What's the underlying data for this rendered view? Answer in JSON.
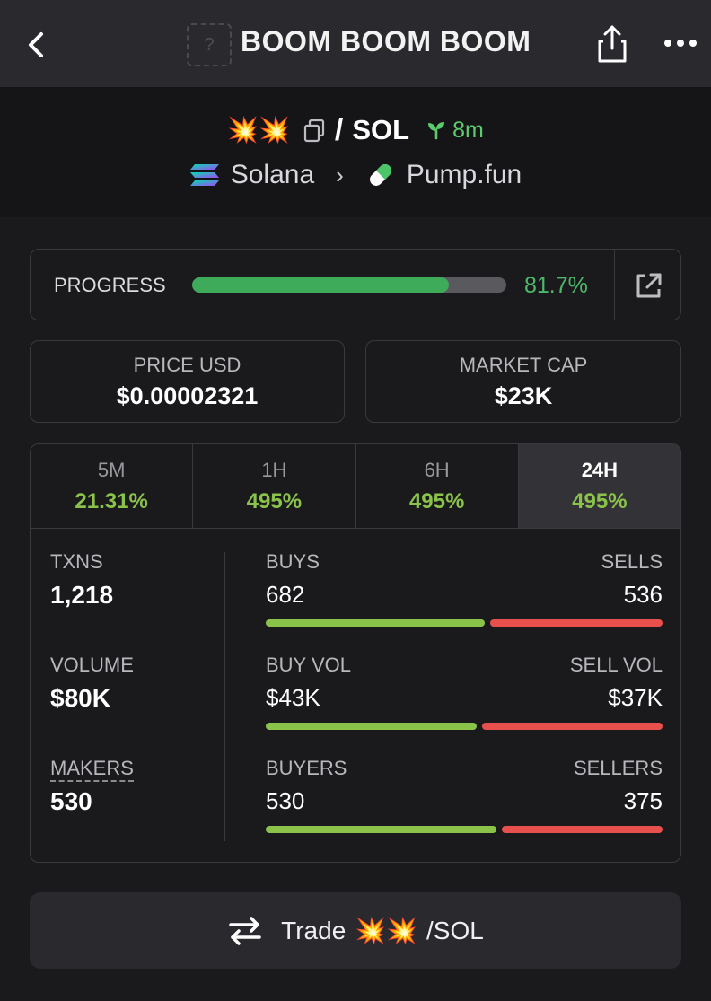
{
  "header": {
    "title": "BOOM BOOM BOOM",
    "token_image_placeholder": "?",
    "back_icon": "chevron-left-icon",
    "share_icon": "share-icon",
    "more_icon": "more-horizontal-icon"
  },
  "pair": {
    "base_symbol": "💥💥",
    "separator": "/",
    "quote_symbol": "SOL",
    "age": "8m",
    "chain": "Solana",
    "dex": "Pump.fun"
  },
  "progress": {
    "label": "PROGRESS",
    "value_text": "81.7%",
    "fraction": 0.817
  },
  "stats": {
    "price_label": "PRICE USD",
    "price_value": "$0.00002321",
    "mcap_label": "MARKET CAP",
    "mcap_value": "$23K"
  },
  "timeframes": [
    {
      "label": "5M",
      "change": "21.31%"
    },
    {
      "label": "1H",
      "change": "495%"
    },
    {
      "label": "6H",
      "change": "495%"
    },
    {
      "label": "24H",
      "change": "495%",
      "active": true
    }
  ],
  "metrics": {
    "txns_label": "TXNS",
    "txns_value": "1,218",
    "volume_label": "VOLUME",
    "volume_value": "$80K",
    "makers_label": "MAKERS",
    "makers_value": "530",
    "buys_label": "BUYS",
    "buys_value": "682",
    "sells_label": "SELLS",
    "sells_value": "536",
    "buys_fraction": 0.56,
    "buyvol_label": "BUY VOL",
    "buyvol_value": "$43K",
    "sellvol_label": "SELL VOL",
    "sellvol_value": "$37K",
    "buyvol_fraction": 0.54,
    "buyers_label": "BUYERS",
    "buyers_value": "530",
    "sellers_label": "SELLERS",
    "sellers_value": "375",
    "buyers_fraction": 0.59
  },
  "trade": {
    "label": "Trade",
    "pair_base": "💥💥",
    "pair_quote": "/SOL"
  },
  "colors": {
    "accent_green": "#3eab5a",
    "buy_green": "#8bc34a",
    "sell_red": "#e8504e"
  }
}
